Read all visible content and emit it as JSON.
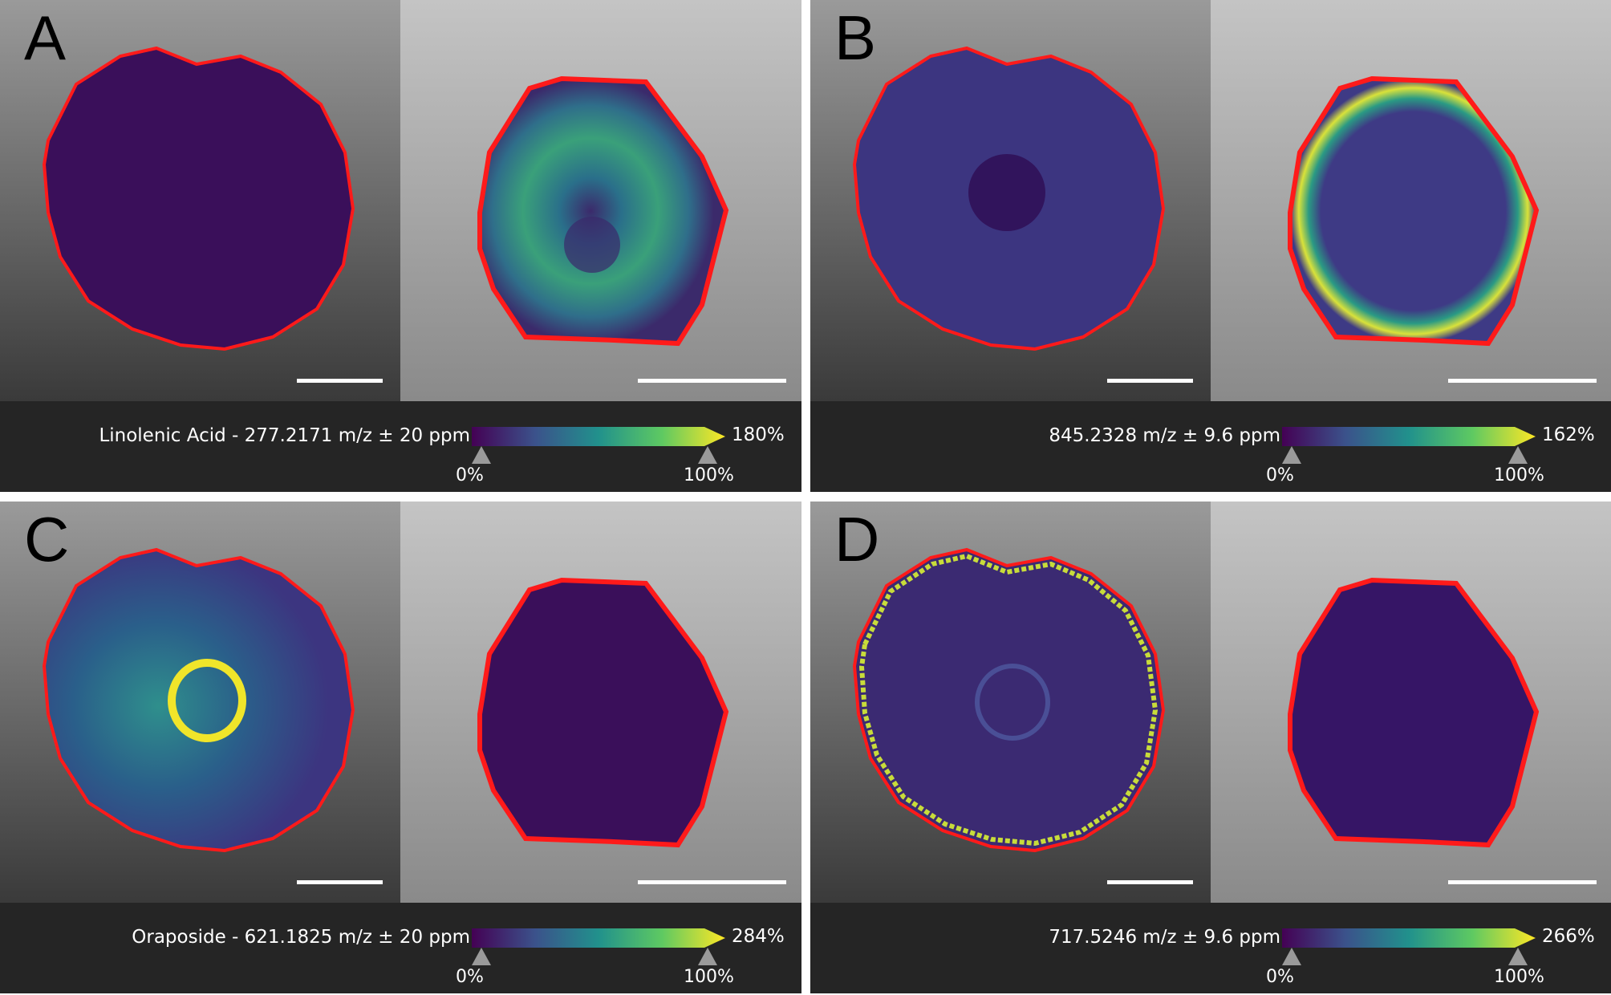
{
  "panels": [
    {
      "letter": "A",
      "label": "Linolenic Acid - 277.2171 m/z ± 20 ppm",
      "max_pct": "180%",
      "min_pct": "0%",
      "ref_pct": "100%",
      "left_pattern": "uniform-dark",
      "right_pattern": "speckled-bright-ring"
    },
    {
      "letter": "B",
      "label": "845.2328 m/z ± 9.6 ppm",
      "max_pct": "162%",
      "min_pct": "0%",
      "ref_pct": "100%",
      "left_pattern": "uniform-with-dark-center",
      "right_pattern": "bright-edge-ring"
    },
    {
      "letter": "C",
      "label": "Oraposide - 621.1825 m/z ± 20 ppm",
      "max_pct": "284%",
      "min_pct": "0%",
      "ref_pct": "100%",
      "left_pattern": "bright-central-ring",
      "right_pattern": "uniform-dark"
    },
    {
      "letter": "D",
      "label": "717.5246 m/z ± 9.6 ppm",
      "max_pct": "266%",
      "min_pct": "0%",
      "ref_pct": "100%",
      "left_pattern": "bright-outer-rim",
      "right_pattern": "uniform-dark"
    }
  ],
  "colors": {
    "outline": "#ff1a1a",
    "scale_bar": "#ffffff",
    "viridis_low": "#440154",
    "viridis_mid": "#21918c",
    "viridis_high": "#fde725"
  }
}
